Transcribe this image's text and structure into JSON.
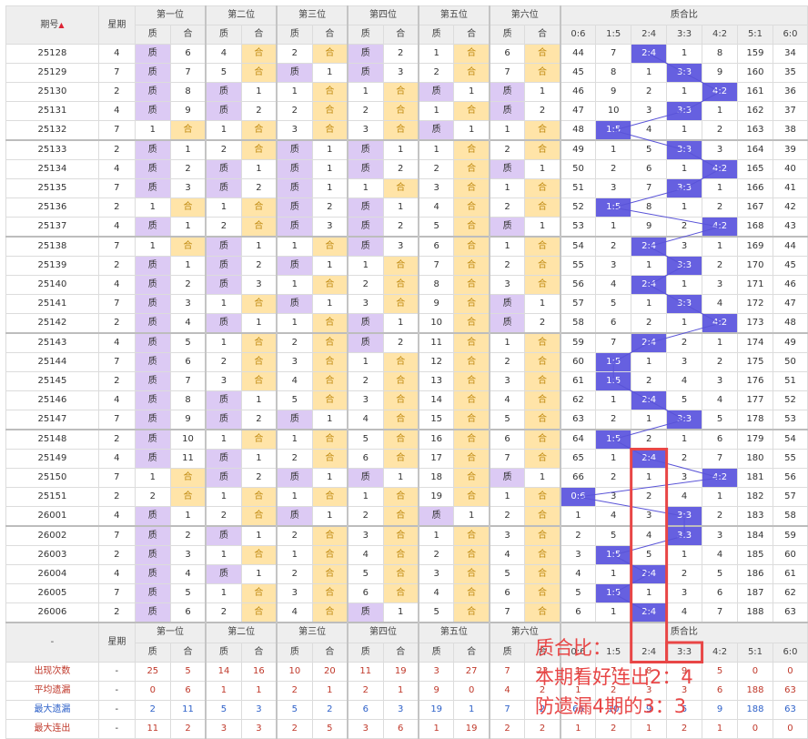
{
  "header": {
    "issue": "期号",
    "sort_icon": "▲",
    "weekday": "星期",
    "positions": [
      "第一位",
      "第二位",
      "第三位",
      "第四位",
      "第五位",
      "第六位"
    ],
    "zhi": "质",
    "he": "合",
    "ratio_title": "质合比",
    "ratios": [
      "0:6",
      "1:5",
      "2:4",
      "3:3",
      "4:2",
      "5:1",
      "6:0"
    ]
  },
  "rows": [
    {
      "issue": "25128",
      "week": "4",
      "p": [
        [
          "Z",
          "6"
        ],
        [
          "4",
          "H"
        ],
        [
          "2",
          "H"
        ],
        [
          "Z",
          "2"
        ],
        [
          "1",
          "H"
        ],
        [
          "6",
          "H"
        ]
      ],
      "r": [
        "44",
        "7",
        "2:4",
        "1",
        "8",
        "159",
        "34"
      ]
    },
    {
      "issue": "25129",
      "week": "7",
      "p": [
        [
          "Z",
          "7"
        ],
        [
          "5",
          "H"
        ],
        [
          "Z",
          "1"
        ],
        [
          "Z",
          "3"
        ],
        [
          "2",
          "H"
        ],
        [
          "7",
          "H"
        ]
      ],
      "r": [
        "45",
        "8",
        "1",
        "3:3",
        "9",
        "160",
        "35"
      ]
    },
    {
      "issue": "25130",
      "week": "2",
      "p": [
        [
          "Z",
          "8"
        ],
        [
          "Z",
          "1"
        ],
        [
          "1",
          "H"
        ],
        [
          "1",
          "H"
        ],
        [
          "Z",
          "1"
        ],
        [
          "Z",
          "1"
        ]
      ],
      "r": [
        "46",
        "9",
        "2",
        "1",
        "4:2",
        "161",
        "36"
      ]
    },
    {
      "issue": "25131",
      "week": "4",
      "p": [
        [
          "Z",
          "9"
        ],
        [
          "Z",
          "2"
        ],
        [
          "2",
          "H"
        ],
        [
          "2",
          "H"
        ],
        [
          "1",
          "H"
        ],
        [
          "Z",
          "2"
        ]
      ],
      "r": [
        "47",
        "10",
        "3",
        "3:3",
        "1",
        "162",
        "37"
      ]
    },
    {
      "issue": "25132",
      "week": "7",
      "p": [
        [
          "1",
          "H"
        ],
        [
          "1",
          "H"
        ],
        [
          "3",
          "H"
        ],
        [
          "3",
          "H"
        ],
        [
          "Z",
          "1"
        ],
        [
          "1",
          "H"
        ]
      ],
      "r": [
        "48",
        "1:5",
        "4",
        "1",
        "2",
        "163",
        "38"
      ]
    },
    {
      "issue": "25133",
      "week": "2",
      "p": [
        [
          "Z",
          "1"
        ],
        [
          "2",
          "H"
        ],
        [
          "Z",
          "1"
        ],
        [
          "Z",
          "1"
        ],
        [
          "1",
          "H"
        ],
        [
          "2",
          "H"
        ]
      ],
      "r": [
        "49",
        "1",
        "5",
        "3:3",
        "3",
        "164",
        "39"
      ]
    },
    {
      "issue": "25134",
      "week": "4",
      "p": [
        [
          "Z",
          "2"
        ],
        [
          "Z",
          "1"
        ],
        [
          "Z",
          "1"
        ],
        [
          "Z",
          "2"
        ],
        [
          "2",
          "H"
        ],
        [
          "Z",
          "1"
        ]
      ],
      "r": [
        "50",
        "2",
        "6",
        "1",
        "4:2",
        "165",
        "40"
      ]
    },
    {
      "issue": "25135",
      "week": "7",
      "p": [
        [
          "Z",
          "3"
        ],
        [
          "Z",
          "2"
        ],
        [
          "Z",
          "1"
        ],
        [
          "1",
          "H"
        ],
        [
          "3",
          "H"
        ],
        [
          "1",
          "H"
        ]
      ],
      "r": [
        "51",
        "3",
        "7",
        "3:3",
        "1",
        "166",
        "41"
      ]
    },
    {
      "issue": "25136",
      "week": "2",
      "p": [
        [
          "1",
          "H"
        ],
        [
          "1",
          "H"
        ],
        [
          "Z",
          "2"
        ],
        [
          "Z",
          "1"
        ],
        [
          "4",
          "H"
        ],
        [
          "2",
          "H"
        ]
      ],
      "r": [
        "52",
        "1:5",
        "8",
        "1",
        "2",
        "167",
        "42"
      ]
    },
    {
      "issue": "25137",
      "week": "4",
      "p": [
        [
          "Z",
          "1"
        ],
        [
          "2",
          "H"
        ],
        [
          "Z",
          "3"
        ],
        [
          "Z",
          "2"
        ],
        [
          "5",
          "H"
        ],
        [
          "Z",
          "1"
        ]
      ],
      "r": [
        "53",
        "1",
        "9",
        "2",
        "4:2",
        "168",
        "43"
      ]
    },
    {
      "issue": "25138",
      "week": "7",
      "p": [
        [
          "1",
          "H"
        ],
        [
          "Z",
          "1"
        ],
        [
          "1",
          "H"
        ],
        [
          "Z",
          "3"
        ],
        [
          "6",
          "H"
        ],
        [
          "1",
          "H"
        ]
      ],
      "r": [
        "54",
        "2",
        "2:4",
        "3",
        "1",
        "169",
        "44"
      ]
    },
    {
      "issue": "25139",
      "week": "2",
      "p": [
        [
          "Z",
          "1"
        ],
        [
          "Z",
          "2"
        ],
        [
          "Z",
          "1"
        ],
        [
          "1",
          "H"
        ],
        [
          "7",
          "H"
        ],
        [
          "2",
          "H"
        ]
      ],
      "r": [
        "55",
        "3",
        "1",
        "3:3",
        "2",
        "170",
        "45"
      ]
    },
    {
      "issue": "25140",
      "week": "4",
      "p": [
        [
          "Z",
          "2"
        ],
        [
          "Z",
          "3"
        ],
        [
          "1",
          "H"
        ],
        [
          "2",
          "H"
        ],
        [
          "8",
          "H"
        ],
        [
          "3",
          "H"
        ]
      ],
      "r": [
        "56",
        "4",
        "2:4",
        "1",
        "3",
        "171",
        "46"
      ]
    },
    {
      "issue": "25141",
      "week": "7",
      "p": [
        [
          "Z",
          "3"
        ],
        [
          "1",
          "H"
        ],
        [
          "Z",
          "1"
        ],
        [
          "3",
          "H"
        ],
        [
          "9",
          "H"
        ],
        [
          "Z",
          "1"
        ]
      ],
      "r": [
        "57",
        "5",
        "1",
        "3:3",
        "4",
        "172",
        "47"
      ]
    },
    {
      "issue": "25142",
      "week": "2",
      "p": [
        [
          "Z",
          "4"
        ],
        [
          "Z",
          "1"
        ],
        [
          "1",
          "H"
        ],
        [
          "Z",
          "1"
        ],
        [
          "10",
          "H"
        ],
        [
          "Z",
          "2"
        ]
      ],
      "r": [
        "58",
        "6",
        "2",
        "1",
        "4:2",
        "173",
        "48"
      ]
    },
    {
      "issue": "25143",
      "week": "4",
      "p": [
        [
          "Z",
          "5"
        ],
        [
          "1",
          "H"
        ],
        [
          "2",
          "H"
        ],
        [
          "Z",
          "2"
        ],
        [
          "11",
          "H"
        ],
        [
          "1",
          "H"
        ]
      ],
      "r": [
        "59",
        "7",
        "2:4",
        "2",
        "1",
        "174",
        "49"
      ]
    },
    {
      "issue": "25144",
      "week": "7",
      "p": [
        [
          "Z",
          "6"
        ],
        [
          "2",
          "H"
        ],
        [
          "3",
          "H"
        ],
        [
          "1",
          "H"
        ],
        [
          "12",
          "H"
        ],
        [
          "2",
          "H"
        ]
      ],
      "r": [
        "60",
        "1:5",
        "1",
        "3",
        "2",
        "175",
        "50"
      ]
    },
    {
      "issue": "25145",
      "week": "2",
      "p": [
        [
          "Z",
          "7"
        ],
        [
          "3",
          "H"
        ],
        [
          "4",
          "H"
        ],
        [
          "2",
          "H"
        ],
        [
          "13",
          "H"
        ],
        [
          "3",
          "H"
        ]
      ],
      "r": [
        "61",
        "1:5",
        "2",
        "4",
        "3",
        "176",
        "51"
      ]
    },
    {
      "issue": "25146",
      "week": "4",
      "p": [
        [
          "Z",
          "8"
        ],
        [
          "Z",
          "1"
        ],
        [
          "5",
          "H"
        ],
        [
          "3",
          "H"
        ],
        [
          "14",
          "H"
        ],
        [
          "4",
          "H"
        ]
      ],
      "r": [
        "62",
        "1",
        "2:4",
        "5",
        "4",
        "177",
        "52"
      ]
    },
    {
      "issue": "25147",
      "week": "7",
      "p": [
        [
          "Z",
          "9"
        ],
        [
          "Z",
          "2"
        ],
        [
          "Z",
          "1"
        ],
        [
          "4",
          "H"
        ],
        [
          "15",
          "H"
        ],
        [
          "5",
          "H"
        ]
      ],
      "r": [
        "63",
        "2",
        "1",
        "3:3",
        "5",
        "178",
        "53"
      ]
    },
    {
      "issue": "25148",
      "week": "2",
      "p": [
        [
          "Z",
          "10"
        ],
        [
          "1",
          "H"
        ],
        [
          "1",
          "H"
        ],
        [
          "5",
          "H"
        ],
        [
          "16",
          "H"
        ],
        [
          "6",
          "H"
        ]
      ],
      "r": [
        "64",
        "1:5",
        "2",
        "1",
        "6",
        "179",
        "54"
      ]
    },
    {
      "issue": "25149",
      "week": "4",
      "p": [
        [
          "Z",
          "11"
        ],
        [
          "Z",
          "1"
        ],
        [
          "2",
          "H"
        ],
        [
          "6",
          "H"
        ],
        [
          "17",
          "H"
        ],
        [
          "7",
          "H"
        ]
      ],
      "r": [
        "65",
        "1",
        "2:4",
        "2",
        "7",
        "180",
        "55"
      ]
    },
    {
      "issue": "25150",
      "week": "7",
      "p": [
        [
          "1",
          "H"
        ],
        [
          "Z",
          "2"
        ],
        [
          "Z",
          "1"
        ],
        [
          "Z",
          "1"
        ],
        [
          "18",
          "H"
        ],
        [
          "Z",
          "1"
        ]
      ],
      "r": [
        "66",
        "2",
        "1",
        "3",
        "4:2",
        "181",
        "56"
      ]
    },
    {
      "issue": "25151",
      "week": "2",
      "p": [
        [
          "2",
          "H"
        ],
        [
          "1",
          "H"
        ],
        [
          "1",
          "H"
        ],
        [
          "1",
          "H"
        ],
        [
          "19",
          "H"
        ],
        [
          "1",
          "H"
        ]
      ],
      "r": [
        "0:6",
        "3",
        "2",
        "4",
        "1",
        "182",
        "57"
      ]
    },
    {
      "issue": "26001",
      "week": "4",
      "p": [
        [
          "Z",
          "1"
        ],
        [
          "2",
          "H"
        ],
        [
          "Z",
          "1"
        ],
        [
          "2",
          "H"
        ],
        [
          "Z",
          "1"
        ],
        [
          "2",
          "H"
        ]
      ],
      "r": [
        "1",
        "4",
        "3",
        "3:3",
        "2",
        "183",
        "58"
      ]
    },
    {
      "issue": "26002",
      "week": "7",
      "p": [
        [
          "Z",
          "2"
        ],
        [
          "Z",
          "1"
        ],
        [
          "2",
          "H"
        ],
        [
          "3",
          "H"
        ],
        [
          "1",
          "H"
        ],
        [
          "3",
          "H"
        ]
      ],
      "r": [
        "2",
        "5",
        "4",
        "3:3",
        "3",
        "184",
        "59"
      ]
    },
    {
      "issue": "26003",
      "week": "2",
      "p": [
        [
          "Z",
          "3"
        ],
        [
          "1",
          "H"
        ],
        [
          "1",
          "H"
        ],
        [
          "4",
          "H"
        ],
        [
          "2",
          "H"
        ],
        [
          "4",
          "H"
        ]
      ],
      "r": [
        "3",
        "1:5",
        "5",
        "1",
        "4",
        "185",
        "60"
      ]
    },
    {
      "issue": "26004",
      "week": "4",
      "p": [
        [
          "Z",
          "4"
        ],
        [
          "Z",
          "1"
        ],
        [
          "2",
          "H"
        ],
        [
          "5",
          "H"
        ],
        [
          "3",
          "H"
        ],
        [
          "5",
          "H"
        ]
      ],
      "r": [
        "4",
        "1",
        "2:4",
        "2",
        "5",
        "186",
        "61"
      ]
    },
    {
      "issue": "26005",
      "week": "7",
      "p": [
        [
          "Z",
          "5"
        ],
        [
          "1",
          "H"
        ],
        [
          "3",
          "H"
        ],
        [
          "6",
          "H"
        ],
        [
          "4",
          "H"
        ],
        [
          "6",
          "H"
        ]
      ],
      "r": [
        "5",
        "1:5",
        "1",
        "3",
        "6",
        "187",
        "62"
      ]
    },
    {
      "issue": "26006",
      "week": "2",
      "p": [
        [
          "Z",
          "6"
        ],
        [
          "2",
          "H"
        ],
        [
          "4",
          "H"
        ],
        [
          "Z",
          "1"
        ],
        [
          "5",
          "H"
        ],
        [
          "7",
          "H"
        ]
      ],
      "r": [
        "6",
        "1",
        "2:4",
        "4",
        "7",
        "188",
        "63"
      ]
    }
  ],
  "footer": {
    "dash": "-",
    "stats": [
      {
        "label": "出现次数",
        "dash": "-",
        "vals": [
          "25",
          "5",
          "14",
          "16",
          "10",
          "20",
          "11",
          "19",
          "3",
          "27",
          "7",
          "23",
          "1",
          "7",
          "8",
          "9",
          "5",
          "0",
          "0"
        ]
      },
      {
        "label": "平均遗漏",
        "dash": "-",
        "vals": [
          "0",
          "6",
          "1",
          "1",
          "2",
          "1",
          "2",
          "1",
          "9",
          "0",
          "4",
          "2",
          "1",
          "2",
          "3",
          "3",
          "6",
          "188",
          "63"
        ]
      },
      {
        "label": "最大遗漏",
        "dash": "-",
        "vals": [
          "2",
          "11",
          "5",
          "3",
          "5",
          "2",
          "6",
          "3",
          "19",
          "1",
          "7",
          "2",
          "66",
          "10",
          "9",
          "5",
          "9",
          "188",
          "63"
        ]
      },
      {
        "label": "最大连出",
        "dash": "-",
        "vals": [
          "11",
          "2",
          "3",
          "3",
          "2",
          "5",
          "3",
          "6",
          "1",
          "19",
          "2",
          "2",
          "1",
          "2",
          "1",
          "2",
          "1",
          "0",
          "0"
        ]
      }
    ]
  },
  "annotation": {
    "line1": "质合比：",
    "line2": "本期看好连出2：4",
    "line3": "防遗漏4期的3：3",
    "color": "#e84646"
  },
  "colors": {
    "zhi_bg": "#dccaf4",
    "he_bg": "#ffe4a8",
    "highlight": "#6660e0",
    "highlight_box": "#e84646"
  }
}
